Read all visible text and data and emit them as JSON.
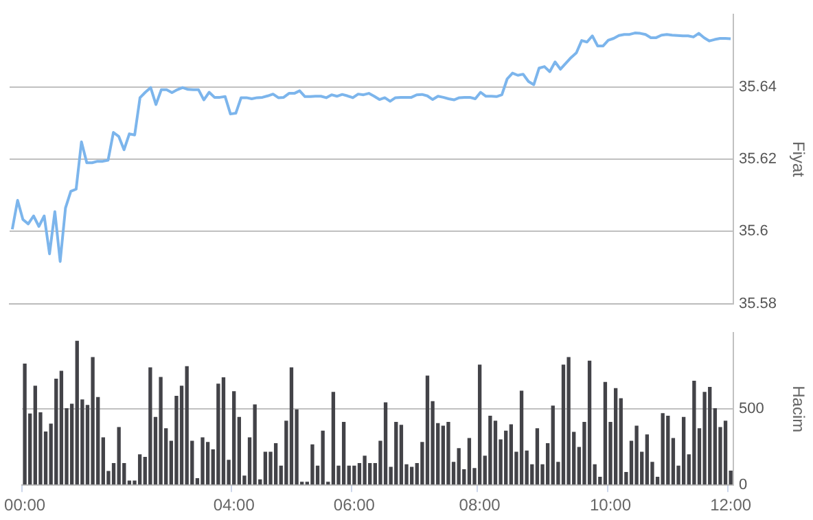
{
  "chart_data": [
    {
      "type": "line",
      "categories": [
        null,
        null,
        null,
        null,
        null,
        null,
        null,
        null,
        null,
        null,
        null,
        null,
        null,
        null,
        null,
        null,
        null,
        null,
        null,
        null,
        null,
        null,
        null,
        null,
        null,
        null,
        null,
        null,
        null,
        null,
        null,
        null,
        null,
        null,
        null,
        null,
        null,
        null,
        null,
        null,
        null,
        null,
        null,
        null,
        null,
        null,
        null,
        null,
        null,
        null,
        null,
        null,
        null,
        null,
        null,
        null,
        null,
        null,
        null,
        null,
        null,
        null,
        null,
        null,
        null,
        null,
        null,
        null,
        null,
        null,
        null,
        null,
        null,
        null,
        null,
        null,
        null,
        null,
        null,
        null,
        null,
        null,
        null,
        null,
        null,
        null,
        null,
        null,
        null,
        null,
        null,
        null,
        null,
        null,
        null,
        null,
        null,
        null,
        null,
        null,
        null,
        null,
        null,
        null,
        null,
        null,
        null,
        null,
        null,
        null,
        null,
        null,
        null,
        null,
        null,
        null,
        null,
        null,
        null,
        null,
        null,
        null,
        null,
        null,
        null,
        null,
        null,
        null,
        null,
        null,
        null,
        null,
        null,
        null,
        null,
        null
      ],
      "series": [
        {
          "color": "#7cb5ec",
          "values": [
            35.6006,
            35.6086,
            35.6033,
            35.6021,
            35.6043,
            35.6014,
            35.6043,
            35.5938,
            35.6055,
            35.5917,
            35.6065,
            35.6111,
            35.6117,
            35.6248,
            35.619,
            35.619,
            35.6194,
            35.6194,
            35.6197,
            35.6274,
            35.6263,
            35.6226,
            35.627,
            35.6267,
            35.637,
            35.6385,
            35.6398,
            35.6351,
            35.6392,
            35.6392,
            35.6384,
            35.6392,
            35.6398,
            35.6393,
            35.6392,
            35.6392,
            35.6364,
            35.6385,
            35.6371,
            35.6371,
            35.6373,
            35.6325,
            35.6327,
            35.637,
            35.637,
            35.6367,
            35.637,
            35.6371,
            35.6375,
            35.638,
            35.637,
            35.6371,
            35.6382,
            35.6382,
            35.6389,
            35.6373,
            35.6373,
            35.6374,
            35.6374,
            35.637,
            35.6378,
            35.6374,
            35.6379,
            35.6375,
            35.637,
            35.638,
            35.6378,
            35.6382,
            35.6374,
            35.6365,
            35.637,
            35.636,
            35.637,
            35.6371,
            35.6371,
            35.6371,
            35.6378,
            35.6379,
            35.6375,
            35.6365,
            35.6374,
            35.6371,
            35.6367,
            35.6364,
            35.637,
            35.6371,
            35.6371,
            35.6367,
            35.6385,
            35.6374,
            35.6374,
            35.6373,
            35.6378,
            35.6422,
            35.6438,
            35.6432,
            35.6435,
            35.6415,
            35.6406,
            35.6452,
            35.6456,
            35.6442,
            35.6469,
            35.6449,
            35.6465,
            35.6481,
            35.6494,
            35.6528,
            35.6524,
            35.6541,
            35.6513,
            35.6513,
            35.6529,
            35.6534,
            35.6542,
            35.6545,
            35.6545,
            35.6549,
            35.6548,
            35.6545,
            35.6536,
            35.6536,
            35.6543,
            35.6545,
            35.6543,
            35.6542,
            35.6541,
            35.6541,
            35.6538,
            35.6548,
            35.6536,
            35.6527,
            35.6531,
            35.6534,
            35.6534,
            35.6533
          ]
        }
      ],
      "ylabel": "Fiyat",
      "ylim": [
        35.58,
        35.66
      ],
      "yticks": [
        35.58,
        35.6,
        35.62,
        35.64
      ],
      "grid": "y",
      "tick_labels": "y",
      "marker": "none"
    },
    {
      "type": "bar",
      "categories": [
        "00:00",
        null,
        null,
        null,
        null,
        null,
        null,
        null,
        null,
        null,
        null,
        null,
        null,
        null,
        null,
        null,
        null,
        null,
        null,
        null,
        null,
        null,
        null,
        null,
        null,
        null,
        null,
        null,
        null,
        null,
        null,
        null,
        null,
        null,
        null,
        null,
        null,
        null,
        null,
        null,
        "04:00",
        null,
        null,
        null,
        null,
        null,
        null,
        null,
        null,
        null,
        null,
        null,
        null,
        null,
        null,
        null,
        null,
        null,
        null,
        null,
        null,
        null,
        null,
        "06:00",
        null,
        null,
        null,
        null,
        null,
        null,
        null,
        null,
        null,
        null,
        null,
        null,
        null,
        null,
        null,
        null,
        null,
        null,
        null,
        null,
        null,
        null,
        null,
        "08:00",
        null,
        null,
        null,
        null,
        null,
        null,
        null,
        null,
        null,
        null,
        null,
        null,
        null,
        null,
        null,
        null,
        null,
        null,
        null,
        null,
        null,
        null,
        null,
        null,
        "10:00",
        null,
        null,
        null,
        null,
        null,
        null,
        null,
        null,
        null,
        null,
        null,
        null,
        null,
        null,
        null,
        null,
        null,
        null,
        null,
        null,
        null,
        null,
        "12:00"
      ],
      "series": [
        {
          "color": "#434348",
          "values": [
            798,
            470,
            653,
            478,
            352,
            404,
            699,
            751,
            505,
            535,
            948,
            563,
            527,
            841,
            579,
            314,
            93,
            145,
            382,
            145,
            30,
            30,
            202,
            186,
            773,
            448,
            710,
            374,
            292,
            587,
            653,
            781,
            292,
            46,
            314,
            284,
            235,
            667,
            708,
            167,
            617,
            448,
            63,
            314,
            530,
            38,
            219,
            219,
            276,
            128,
            423,
            773,
            497,
            22,
            22,
            268,
            128,
            358,
            22,
            612,
            128,
            415,
            128,
            128,
            145,
            194,
            145,
            145,
            292,
            544,
            120,
            415,
            396,
            137,
            120,
            145,
            284,
            719,
            552,
            407,
            391,
            415,
            153,
            243,
            104,
            309,
            112,
            792,
            194,
            456,
            423,
            301,
            358,
            399,
            219,
            620,
            227,
            137,
            374,
            137,
            276,
            522,
            153,
            792,
            841,
            350,
            251,
            415,
            817,
            137,
            55,
            678,
            415,
            637,
            571,
            87,
            292,
            391,
            219,
            333,
            153,
            55,
            473,
            456,
            309,
            128,
            448,
            202,
            686,
            374,
            612,
            645,
            505,
            382,
            423,
            96
          ]
        }
      ],
      "ylabel": "Hacim",
      "ylim": [
        0,
        1000
      ],
      "yticks": [
        0,
        500
      ],
      "grid": "y"
    }
  ]
}
